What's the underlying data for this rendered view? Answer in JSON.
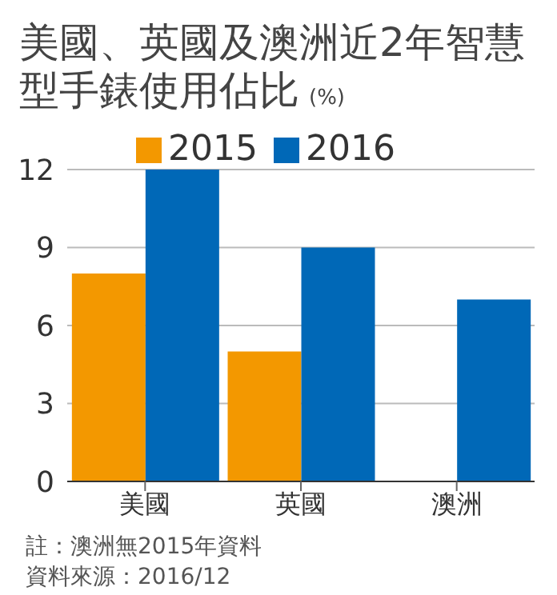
{
  "chart_data": {
    "type": "bar",
    "title": "美國、英國及澳洲近2年智慧型手錶使用佔比",
    "ylabel": "(%)",
    "categories": [
      "美國",
      "英國",
      "澳洲"
    ],
    "series": [
      {
        "name": "2015",
        "color": "#f39800",
        "values": [
          8,
          5,
          null
        ]
      },
      {
        "name": "2016",
        "color": "#0068b7",
        "values": [
          12,
          9,
          7
        ]
      }
    ],
    "ylim": [
      0,
      12
    ],
    "yticks": [
      0,
      3,
      6,
      9,
      12
    ],
    "grid": "y",
    "legend": "top",
    "annotations": [
      "註：澳洲無2015年資料",
      "資料來源：2016/12"
    ]
  }
}
